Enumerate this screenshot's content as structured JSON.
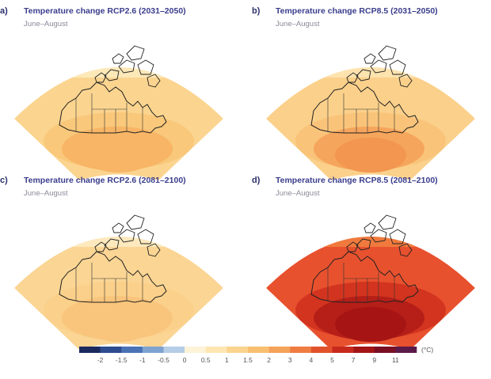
{
  "panels": [
    {
      "id": "a",
      "letter": "a)",
      "title": "Temperature change RCP2.6 (2031–2050)",
      "subtitle": "June–August",
      "colors": {
        "base": "#fbd48f",
        "mid": "#f9c87a",
        "hot": "#f7b565",
        "hotter": "#f7b565",
        "cold": "#fde8b8"
      }
    },
    {
      "id": "b",
      "letter": "b)",
      "title": "Temperature change RCP8.5 (2031–2050)",
      "subtitle": "June–August",
      "colors": {
        "base": "#fbd08a",
        "mid": "#f9c47a",
        "hot": "#f6a55c",
        "hotter": "#f29650",
        "cold": "#fde3ae"
      }
    },
    {
      "id": "c",
      "letter": "c)",
      "title": "Temperature change RCP2.6 (2081–2100)",
      "subtitle": "June–August",
      "colors": {
        "base": "#fbd594",
        "mid": "#fbd08a",
        "hot": "#f9c57c",
        "hotter": "#f9c57c",
        "cold": "#fde9bd"
      }
    },
    {
      "id": "d",
      "letter": "d)",
      "title": "Temperature change RCP8.5 (2081–2100)",
      "subtitle": "June–August",
      "colors": {
        "base": "#e8512e",
        "mid": "#d2341f",
        "hot": "#b51f18",
        "hotter": "#a61514",
        "cold": "#f07a3d"
      }
    }
  ],
  "legend": {
    "unit": "(°C)",
    "ticks": [
      "-2",
      "-1.5",
      "-1",
      "-0.5",
      "0",
      "0.5",
      "1",
      "1.5",
      "2",
      "3",
      "4",
      "5",
      "7",
      "9",
      "11"
    ],
    "colors": [
      "#1a2a5e",
      "#2e4c8f",
      "#4a73b5",
      "#7ea3d1",
      "#b5cde6",
      "#fdf3d8",
      "#fde6b2",
      "#fbd48f",
      "#f9bf70",
      "#f5a25a",
      "#ef7d42",
      "#e1522c",
      "#c72a1c",
      "#a31515",
      "#7a0f24",
      "#5a1a4a"
    ]
  }
}
